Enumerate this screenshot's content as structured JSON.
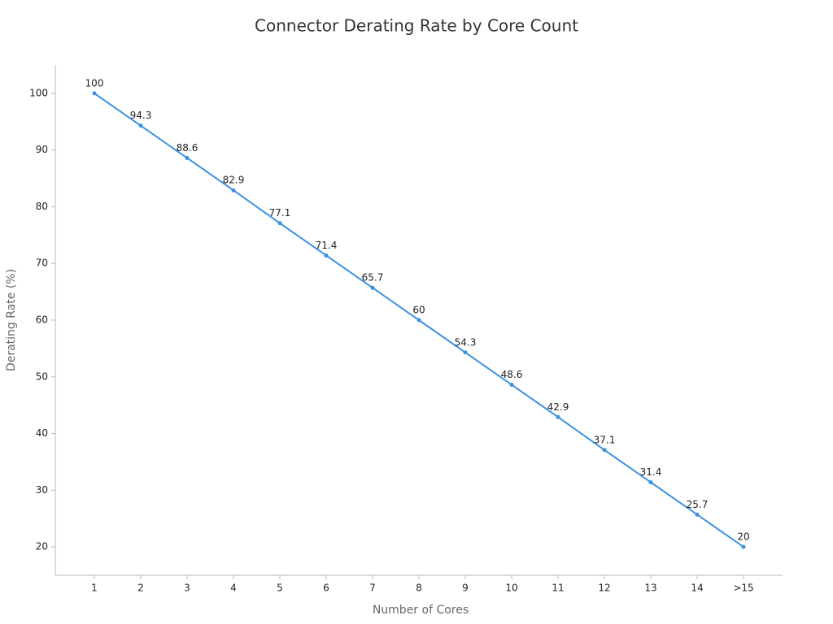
{
  "chart_data": {
    "type": "line",
    "title": "Connector Derating Rate by Core Count",
    "x_label": "Number of Cores",
    "y_label": "Derating Rate (%)",
    "categories": [
      "1",
      "2",
      "3",
      "4",
      "5",
      "6",
      "7",
      "8",
      "9",
      "10",
      "11",
      "12",
      "13",
      "14",
      ">15"
    ],
    "values": [
      100,
      94.3,
      88.6,
      82.9,
      77.1,
      71.4,
      65.7,
      60,
      54.3,
      48.6,
      42.9,
      37.1,
      31.4,
      25.7,
      20
    ],
    "color": "#3b91e0",
    "ylim": [
      15,
      105
    ],
    "yticks": [
      20,
      30,
      40,
      50,
      60,
      70,
      80,
      90,
      100
    ],
    "grid": false
  }
}
